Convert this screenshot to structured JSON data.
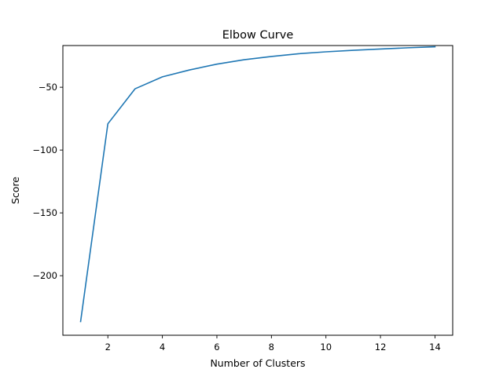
{
  "chart_data": {
    "type": "line",
    "title": "Elbow Curve",
    "xlabel": "Number of Clusters",
    "ylabel": "Score",
    "x": [
      1,
      2,
      3,
      4,
      5,
      6,
      7,
      8,
      9,
      10,
      11,
      12,
      13,
      14
    ],
    "series": [
      {
        "values": [
          -236.5,
          -79.1,
          -51.2,
          -41.7,
          -36.2,
          -31.6,
          -28.1,
          -25.5,
          -23.3,
          -21.8,
          -20.6,
          -19.6,
          -18.6,
          -17.8
        ],
        "color": "#1f77b4"
      }
    ],
    "xlim": [
      0.35,
      14.65
    ],
    "ylim": [
      -247.4,
      -16.8
    ],
    "xticks": [
      2,
      4,
      6,
      8,
      10,
      12,
      14
    ],
    "xtick_labels": [
      "2",
      "4",
      "6",
      "8",
      "10",
      "12",
      "14"
    ],
    "yticks": [
      -50,
      -100,
      -150,
      -200
    ],
    "ytick_labels": [
      "−50",
      "−100",
      "−150",
      "−200"
    ],
    "grid": false
  }
}
